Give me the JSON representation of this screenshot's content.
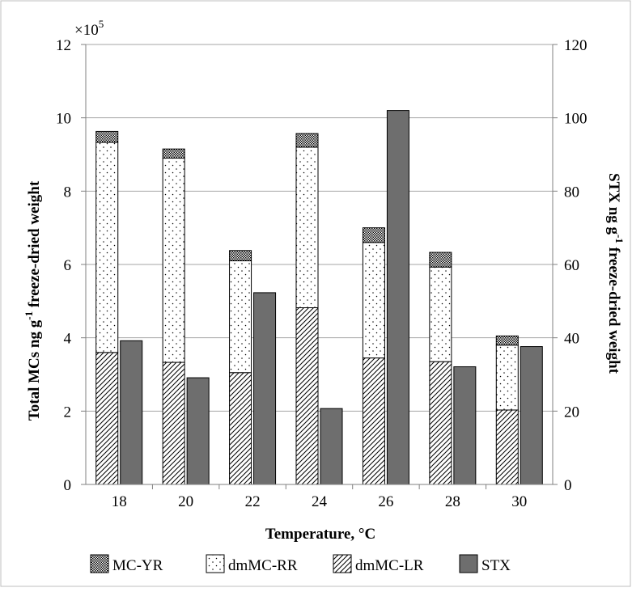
{
  "chart_data": {
    "type": "bar",
    "categories": [
      "18",
      "20",
      "22",
      "24",
      "26",
      "28",
      "30"
    ],
    "xlabel": "Temperature, °C",
    "ylabel_left_main": "Total MCs ng g",
    "ylabel_left_sup": "-1",
    "ylabel_left_rest": " freeze-dried weight",
    "ylabel_right_main": "STX ng g",
    "ylabel_right_sup": "-1",
    "ylabel_right_rest": " freeze-dried weight",
    "left_axis_multiplier_base": "×10",
    "left_axis_multiplier_exp": "5",
    "ylim_left": [
      0,
      12
    ],
    "yticks_left": [
      "0",
      "2",
      "4",
      "6",
      "8",
      "10",
      "12"
    ],
    "ylim_right": [
      0,
      120
    ],
    "yticks_right": [
      "0",
      "20",
      "40",
      "60",
      "80",
      "100",
      "120"
    ],
    "grid": true,
    "legend_position": "bottom",
    "stacked_series": [
      {
        "name": "dmMC-LR",
        "pattern": "diagonal-hatch",
        "values": [
          3.6,
          3.33,
          3.05,
          4.82,
          3.45,
          3.35,
          2.03
        ]
      },
      {
        "name": "dmMC-RR",
        "pattern": "dots",
        "values": [
          5.73,
          5.57,
          3.05,
          4.38,
          3.15,
          2.58,
          1.77
        ]
      },
      {
        "name": "MC-YR",
        "pattern": "dense-dots",
        "values": [
          0.3,
          0.25,
          0.28,
          0.37,
          0.4,
          0.4,
          0.25
        ]
      }
    ],
    "secondary_series": {
      "name": "STX",
      "axis": "right",
      "color": "#6e6e6e",
      "values": [
        39.2,
        29.1,
        52.3,
        20.7,
        102,
        32.1,
        37.6
      ]
    },
    "legend": [
      "MC-YR",
      "dmMC-RR",
      "dmMC-LR",
      "STX"
    ]
  }
}
